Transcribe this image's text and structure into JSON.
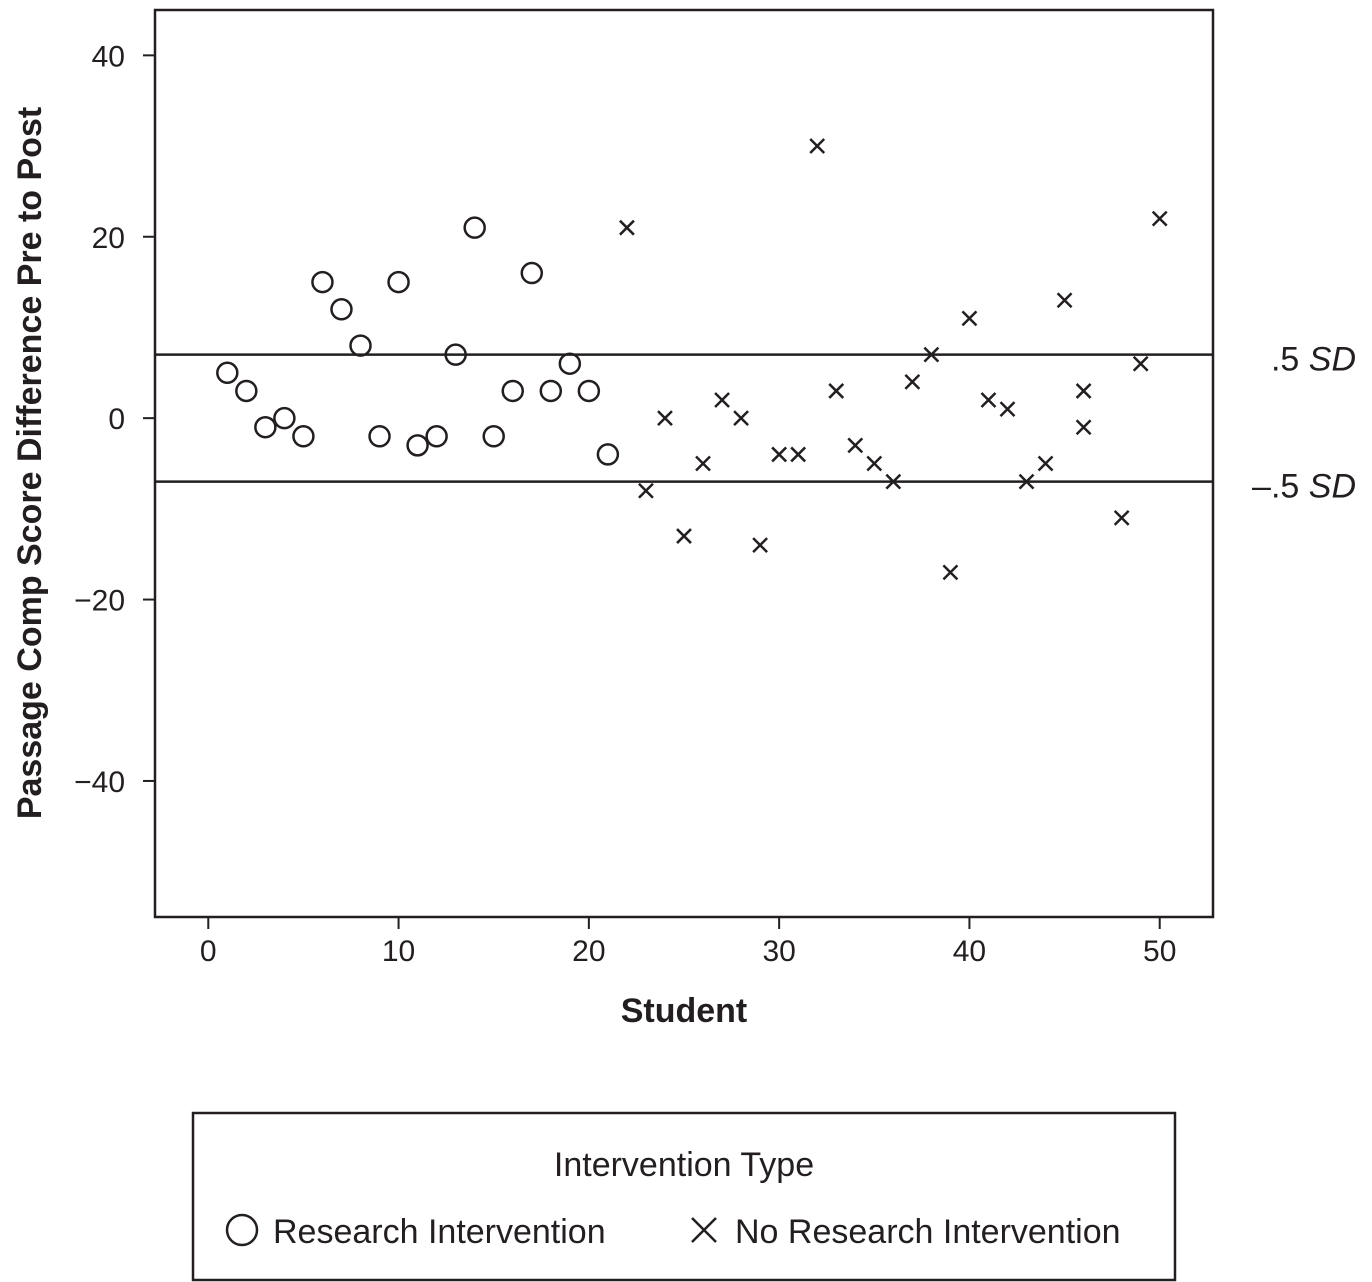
{
  "chart_data": {
    "type": "scatter",
    "xlabel": "Student",
    "ylabel": "Passage Comp Score Difference Pre to Post",
    "xlim": [
      -2.8,
      52.8
    ],
    "ylim": [
      -55,
      45
    ],
    "x_ticks": [
      0,
      10,
      20,
      30,
      40,
      50
    ],
    "y_ticks": [
      40,
      20,
      0,
      -20,
      -40
    ],
    "x_tick_labels": [
      "0",
      "10",
      "20",
      "30",
      "40",
      "50"
    ],
    "y_tick_labels": [
      "40",
      "20",
      "0",
      "−20",
      "−40"
    ],
    "grid": false,
    "reference_lines": [
      {
        "y": 7,
        "label_prefix": ".5 ",
        "label_sd": "SD"
      },
      {
        "y": -7,
        "label_prefix": "–.5 ",
        "label_sd": "SD"
      }
    ],
    "legend": {
      "title": "Intervention Type",
      "placement": "bottom"
    },
    "series": [
      {
        "name": "Research Intervention",
        "marker": "circle",
        "points": [
          [
            1,
            5
          ],
          [
            2,
            3
          ],
          [
            3,
            -1
          ],
          [
            4,
            0
          ],
          [
            5,
            -2
          ],
          [
            6,
            15
          ],
          [
            7,
            12
          ],
          [
            8,
            8
          ],
          [
            9,
            -2
          ],
          [
            10,
            15
          ],
          [
            11,
            -3
          ],
          [
            12,
            -2
          ],
          [
            13,
            7
          ],
          [
            14,
            21
          ],
          [
            15,
            -2
          ],
          [
            16,
            3
          ],
          [
            17,
            16
          ],
          [
            18,
            3
          ],
          [
            19,
            6
          ],
          [
            20,
            3
          ],
          [
            21,
            -4
          ]
        ]
      },
      {
        "name": "No Research Intervention",
        "marker": "x",
        "points": [
          [
            22,
            21
          ],
          [
            23,
            -8
          ],
          [
            24,
            0
          ],
          [
            25,
            -13
          ],
          [
            26,
            -5
          ],
          [
            27,
            2
          ],
          [
            28,
            0
          ],
          [
            29,
            -14
          ],
          [
            30,
            -4
          ],
          [
            31,
            -4
          ],
          [
            32,
            30
          ],
          [
            33,
            3
          ],
          [
            34,
            -3
          ],
          [
            35,
            -5
          ],
          [
            36,
            -7
          ],
          [
            37,
            4
          ],
          [
            38,
            7
          ],
          [
            39,
            -17
          ],
          [
            40,
            11
          ],
          [
            41,
            2
          ],
          [
            42,
            1
          ],
          [
            43,
            -7
          ],
          [
            44,
            -5
          ],
          [
            45,
            13
          ],
          [
            46,
            3
          ],
          [
            46,
            -1
          ],
          [
            48,
            -11
          ],
          [
            49,
            6
          ],
          [
            50,
            22
          ]
        ]
      }
    ]
  }
}
